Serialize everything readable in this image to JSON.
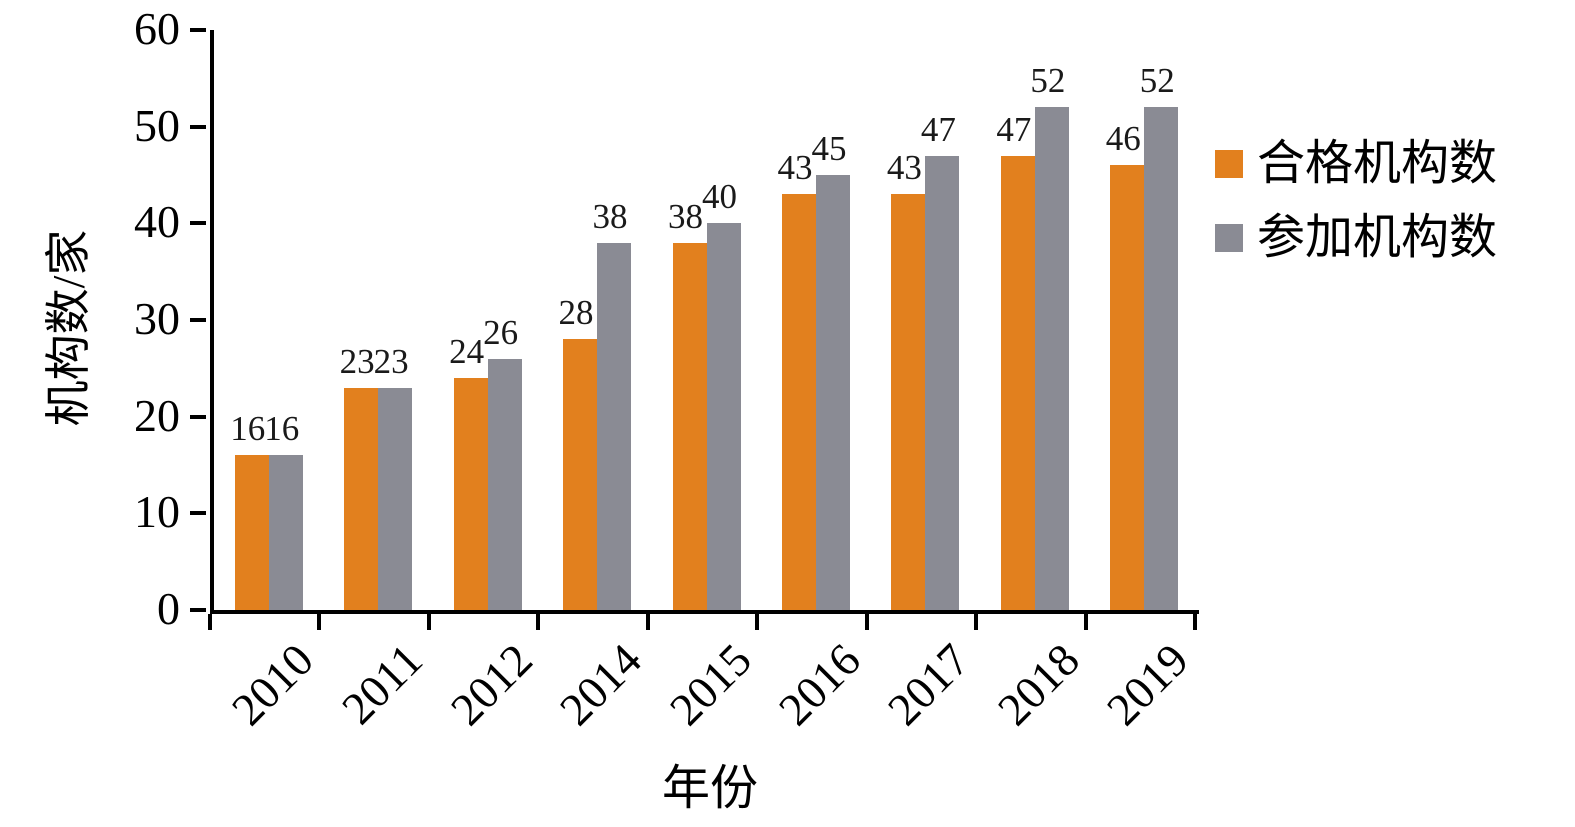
{
  "chart_data": {
    "type": "bar",
    "title": "",
    "categories": [
      "2010",
      "2011",
      "2012",
      "2014",
      "2015",
      "2016",
      "2017",
      "2018",
      "2019"
    ],
    "series": [
      {
        "name": "合格机构数",
        "color": "#E2801E",
        "values": [
          16,
          23,
          24,
          28,
          38,
          43,
          43,
          47,
          46
        ]
      },
      {
        "name": "参加机构数",
        "color": "#8A8B94",
        "values": [
          16,
          23,
          26,
          38,
          40,
          45,
          47,
          52,
          52
        ]
      }
    ],
    "xlabel": "年份",
    "ylabel": "机构数/家",
    "ylim": [
      0,
      60
    ],
    "ytick_step": 10,
    "yticks": [
      0,
      10,
      20,
      30,
      40,
      50,
      60
    ],
    "grid": false,
    "legend_position": "right",
    "data_labels": true
  }
}
